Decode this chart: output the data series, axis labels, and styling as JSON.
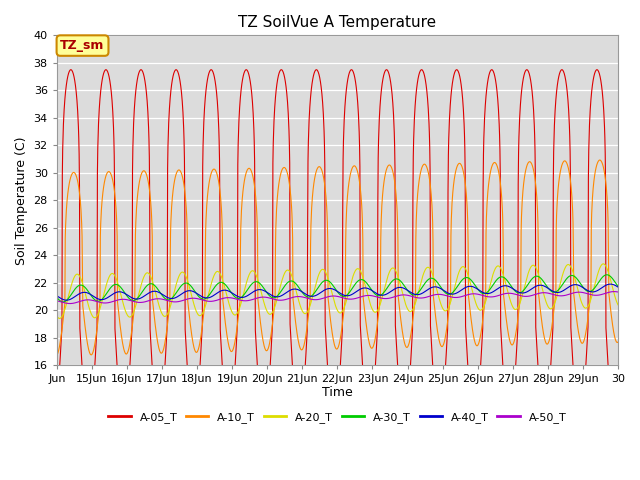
{
  "title": "TZ SoilVue A Temperature",
  "ylabel": "Soil Temperature (C)",
  "xlabel": "Time",
  "ylim": [
    16,
    40
  ],
  "xlim_days": [
    14,
    30
  ],
  "background_color": "#dcdcdc",
  "annotation_text": "TZ_sm",
  "annotation_bg": "#ffff99",
  "annotation_border": "#cc8800",
  "series": [
    {
      "label": "A-05_T",
      "color": "#dd0000",
      "base": 19.0,
      "amp": 18.5,
      "phase": 0.0,
      "sharpness": 6,
      "trend": 0.0
    },
    {
      "label": "A-10_T",
      "color": "#ff8800",
      "base": 20.5,
      "amp": 9.5,
      "phase": 0.08,
      "sharpness": 4,
      "trend": 0.06
    },
    {
      "label": "A-20_T",
      "color": "#dddd00",
      "base": 21.0,
      "amp": 3.2,
      "phase": 0.18,
      "sharpness": 3,
      "trend": 0.05
    },
    {
      "label": "A-30_T",
      "color": "#00cc00",
      "base": 21.2,
      "amp": 1.2,
      "phase": 0.28,
      "sharpness": 2,
      "trend": 0.05
    },
    {
      "label": "A-40_T",
      "color": "#0000cc",
      "base": 21.0,
      "amp": 0.55,
      "phase": 0.38,
      "sharpness": 2,
      "trend": 0.04
    },
    {
      "label": "A-50_T",
      "color": "#aa00cc",
      "base": 20.6,
      "amp": 0.25,
      "phase": 0.48,
      "sharpness": 2,
      "trend": 0.04
    }
  ],
  "xtick_labels": [
    "Jun",
    "15Jun",
    "16Jun",
    "17Jun",
    "18Jun",
    "19Jun",
    "20Jun",
    "21Jun",
    "22Jun",
    "23Jun",
    "24Jun",
    "25Jun",
    "26Jun",
    "27Jun",
    "28Jun",
    "29Jun",
    "30"
  ],
  "xtick_positions": [
    14,
    15,
    16,
    17,
    18,
    19,
    20,
    21,
    22,
    23,
    24,
    25,
    26,
    27,
    28,
    29,
    30
  ],
  "figsize": [
    6.4,
    4.8
  ],
  "dpi": 100
}
